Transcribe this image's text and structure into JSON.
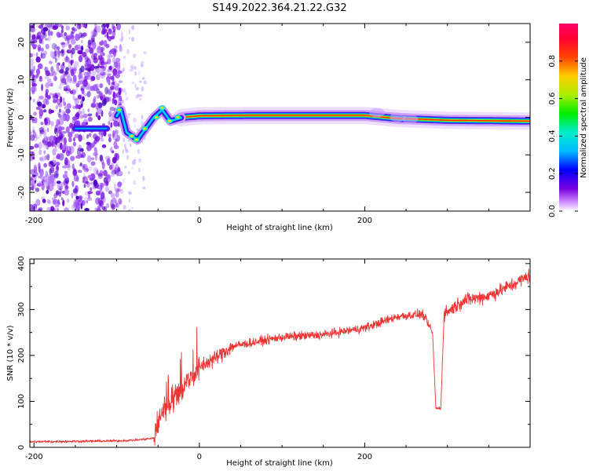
{
  "title": "S149.2022.364.21.22.G32",
  "chart_data": [
    {
      "type": "heatmap",
      "xlabel": "Height of straight line (km)",
      "ylabel": "Frequency (Hz)",
      "xlim": [
        -205,
        400
      ],
      "ylim": [
        -25,
        25
      ],
      "xticks": [
        -200,
        0,
        200
      ],
      "yticks": [
        -20,
        -10,
        0,
        10,
        20
      ],
      "colorbar": {
        "label": "Normalized spectral amplitude",
        "range": [
          0.0,
          1.0
        ],
        "ticks": [
          0.0,
          0.2,
          0.4,
          0.6,
          0.8
        ]
      },
      "ridge": {
        "description_points": [
          {
            "x": -150,
            "y": -3
          },
          {
            "x": -110,
            "y": -3
          },
          {
            "x": -95,
            "y": 2
          },
          {
            "x": -88,
            "y": -4
          },
          {
            "x": -75,
            "y": -6
          },
          {
            "x": -65,
            "y": -3
          },
          {
            "x": -55,
            "y": 0
          },
          {
            "x": -45,
            "y": 2
          },
          {
            "x": -35,
            "y": -1
          },
          {
            "x": -20,
            "y": 0
          },
          {
            "x": 0,
            "y": 0.4
          },
          {
            "x": 60,
            "y": 0.5
          },
          {
            "x": 200,
            "y": 0.5
          },
          {
            "x": 240,
            "y": -0.3
          },
          {
            "x": 300,
            "y": -0.8
          },
          {
            "x": 400,
            "y": -1
          }
        ]
      }
    },
    {
      "type": "line",
      "xlabel": "Height of straight line (km)",
      "ylabel": "SNR (10 * v/v)",
      "xlim": [
        -205,
        400
      ],
      "ylim": [
        0,
        410
      ],
      "xticks": [
        -200,
        0,
        200
      ],
      "yticks": [
        0,
        100,
        200,
        300,
        400
      ],
      "color": "#ee3333",
      "anchors": [
        {
          "x": -205,
          "y": 12
        },
        {
          "x": -100,
          "y": 14
        },
        {
          "x": -75,
          "y": 16
        },
        {
          "x": -55,
          "y": 20
        },
        {
          "x": -45,
          "y": 80
        },
        {
          "x": -30,
          "y": 110
        },
        {
          "x": -15,
          "y": 140
        },
        {
          "x": 0,
          "y": 175
        },
        {
          "x": 20,
          "y": 195
        },
        {
          "x": 40,
          "y": 220
        },
        {
          "x": 70,
          "y": 230
        },
        {
          "x": 100,
          "y": 240
        },
        {
          "x": 150,
          "y": 245
        },
        {
          "x": 200,
          "y": 260
        },
        {
          "x": 240,
          "y": 285
        },
        {
          "x": 270,
          "y": 290
        },
        {
          "x": 282,
          "y": 250
        },
        {
          "x": 286,
          "y": 85
        },
        {
          "x": 292,
          "y": 85
        },
        {
          "x": 296,
          "y": 290
        },
        {
          "x": 320,
          "y": 320
        },
        {
          "x": 350,
          "y": 330
        },
        {
          "x": 380,
          "y": 355
        },
        {
          "x": 400,
          "y": 375
        }
      ]
    }
  ]
}
